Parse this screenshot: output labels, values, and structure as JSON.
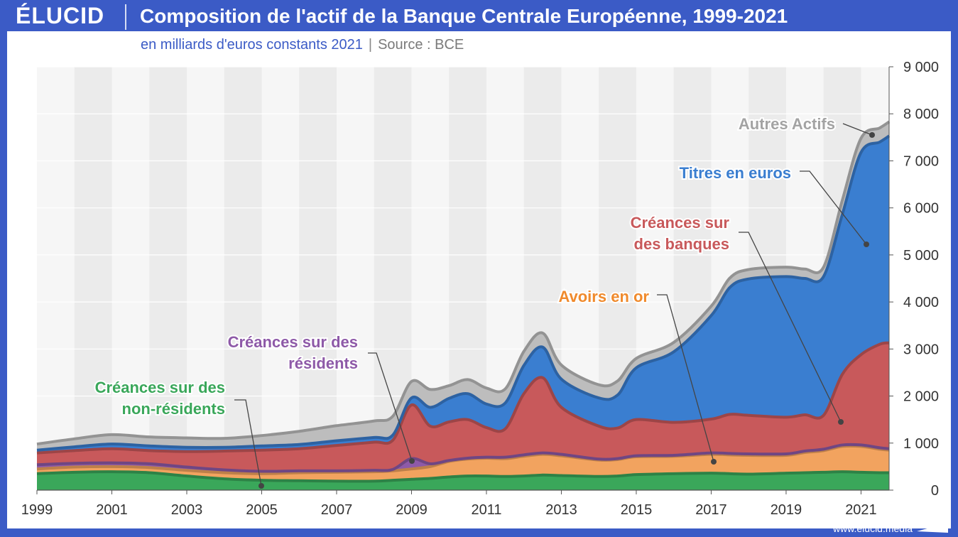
{
  "brand": {
    "logo": "ÉLUCID",
    "url": "www.elucid.media"
  },
  "header": {
    "title": "Composition de l'actif de la Banque Centrale Européenne, 1999-2021",
    "subtitle": "en milliards d'euros constants 2021",
    "source": "Source : BCE"
  },
  "colors": {
    "background": "#3b5bc6",
    "non_residents": "#3aa75a",
    "gold": "#f2a35f",
    "residents": "#8e5aa8",
    "banks": "#c8595b",
    "securities": "#3a7ed0",
    "other": "#bdbdbd"
  },
  "chart_data": {
    "type": "area",
    "stacked": true,
    "xlim": [
      1999,
      2021.75
    ],
    "ylim": [
      0,
      9000
    ],
    "x_ticks": [
      "1999",
      "2001",
      "2003",
      "2005",
      "2007",
      "2009",
      "2011",
      "2013",
      "2015",
      "2017",
      "2019",
      "2021"
    ],
    "y_ticks": [
      "0",
      "1 000",
      "2 000",
      "3 000",
      "4 000",
      "5 000",
      "6 000",
      "7 000",
      "8 000",
      "9 000"
    ],
    "y_axis_position": "right",
    "x": [
      1999,
      2000,
      2001,
      2002,
      2003,
      2004,
      2005,
      2006,
      2007,
      2008,
      2008.5,
      2009,
      2009.5,
      2010,
      2010.5,
      2011,
      2011.5,
      2012,
      2012.5,
      2013,
      2014,
      2014.5,
      2015,
      2016,
      2017,
      2017.5,
      2018,
      2019,
      2019.5,
      2020,
      2020.5,
      2021,
      2021.5,
      2021.75
    ],
    "series": [
      {
        "name": "Créances sur des non-résidents",
        "color_key": "non_residents",
        "values": [
          350,
          380,
          390,
          370,
          300,
          240,
          210,
          200,
          190,
          190,
          210,
          230,
          250,
          280,
          300,
          300,
          290,
          300,
          320,
          310,
          290,
          300,
          330,
          350,
          360,
          350,
          340,
          360,
          370,
          380,
          390,
          380,
          370,
          370
        ]
      },
      {
        "name": "Avoirs en or",
        "color_key": "gold",
        "values": [
          100,
          110,
          110,
          110,
          120,
          130,
          140,
          170,
          190,
          200,
          200,
          220,
          250,
          330,
          360,
          380,
          380,
          420,
          440,
          420,
          350,
          350,
          380,
          370,
          400,
          400,
          400,
          380,
          430,
          460,
          540,
          550,
          500,
          480
        ]
      },
      {
        "name": "Créances sur des résidents",
        "color_key": "residents",
        "values": [
          90,
          80,
          80,
          80,
          70,
          60,
          50,
          40,
          30,
          30,
          30,
          220,
          60,
          20,
          20,
          20,
          30,
          30,
          30,
          30,
          20,
          20,
          20,
          20,
          30,
          30,
          30,
          30,
          30,
          30,
          30,
          30,
          30,
          30
        ]
      },
      {
        "name": "Créances sur des banques",
        "color_key": "banks",
        "values": [
          250,
          270,
          300,
          280,
          330,
          400,
          450,
          470,
          540,
          600,
          620,
          1140,
          800,
          820,
          820,
          630,
          600,
          1300,
          1600,
          1000,
          700,
          650,
          770,
          700,
          720,
          830,
          820,
          780,
          770,
          720,
          1500,
          1920,
          2200,
          2250
        ]
      },
      {
        "name": "Titres en euros",
        "color_key": "securities",
        "values": [
          60,
          80,
          100,
          100,
          90,
          80,
          90,
          90,
          100,
          100,
          110,
          150,
          400,
          500,
          550,
          500,
          550,
          600,
          650,
          600,
          600,
          700,
          1100,
          1500,
          2200,
          2700,
          2900,
          2990,
          2900,
          2950,
          3400,
          4300,
          4300,
          4400
        ]
      },
      {
        "name": "Autres Actifs",
        "color_key": "other",
        "values": [
          130,
          170,
          200,
          190,
          200,
          190,
          220,
          280,
          320,
          350,
          400,
          350,
          380,
          270,
          300,
          340,
          300,
          300,
          300,
          300,
          280,
          300,
          200,
          200,
          200,
          200,
          200,
          200,
          200,
          200,
          300,
          300,
          300,
          300
        ]
      }
    ],
    "annotations": [
      {
        "label": "Autres Actifs",
        "series": "Autres Actifs"
      },
      {
        "label": "Titres en euros",
        "series": "Titres en euros"
      },
      {
        "label": "Créances sur des banques",
        "series": "Créances sur des banques"
      },
      {
        "label": "Avoirs en or",
        "series": "Avoirs en or"
      },
      {
        "label": "Créances sur des résidents",
        "series": "Créances sur des résidents"
      },
      {
        "label": "Créances sur des non-résidents",
        "series": "Créances sur des non-résidents"
      }
    ]
  }
}
